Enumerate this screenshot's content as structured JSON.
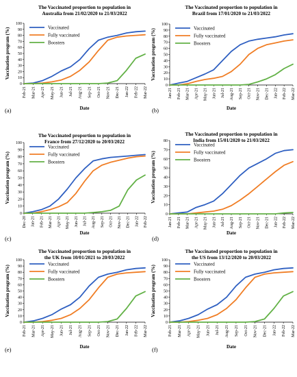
{
  "chart_data": [
    {
      "type": "line",
      "title": [
        "The Vaccinated proportion to population in",
        "Australia from 21/02/2020 to 21/03/2022"
      ],
      "xlabel": "Date",
      "ylabel": "Vaccination program (%)",
      "ylim": [
        0,
        100
      ],
      "y_ticks": [
        0,
        10,
        20,
        30,
        40,
        50,
        60,
        70,
        80,
        90,
        100
      ],
      "categories": [
        "Feb-21",
        "Mar-21",
        "Apr-21",
        "May-21",
        "Jun-21",
        "Jul-21",
        "Aug-21",
        "Sep-21",
        "Oct-21",
        "Nov-21",
        "Dec-21",
        "Jan-22",
        "Feb-22",
        "Mar-22"
      ],
      "legend": "top-left",
      "panel_label": "(a)",
      "series": [
        {
          "name": "Vaccinated",
          "color": "#2e5fc1",
          "values": [
            0,
            1,
            5,
            12,
            21,
            28,
            40,
            58,
            72,
            77,
            80,
            84,
            86,
            87
          ]
        },
        {
          "name": "Fully vaccinated",
          "color": "#f07d24",
          "values": [
            0,
            0,
            1,
            3,
            6,
            12,
            22,
            36,
            55,
            72,
            77,
            79,
            80,
            81
          ]
        },
        {
          "name": "Boosters",
          "color": "#62b146",
          "values": [
            0,
            0,
            0,
            0,
            0,
            0,
            0,
            0,
            0,
            1,
            5,
            22,
            42,
            49
          ]
        }
      ]
    },
    {
      "type": "line",
      "title": [
        "The Vaccinated proportion to population in",
        "Brazil from 17/01/2020 to 21/03/2022"
      ],
      "xlabel": "Date",
      "ylabel": "Vaccination program (%)",
      "ylim": [
        0,
        100
      ],
      "y_ticks": [
        0,
        10,
        20,
        30,
        40,
        50,
        60,
        70,
        80,
        90,
        100
      ],
      "categories": [
        "Jan-21",
        "Feb-21",
        "Mar-21",
        "Apr-21",
        "May-21",
        "Jun-21",
        "Jul-21",
        "Aug-21",
        "Sep-21",
        "Oct-21",
        "Nov-21",
        "Dec-21",
        "Jan-22",
        "Feb-22",
        "Mar-22"
      ],
      "legend": "top-left",
      "panel_label": "(b)",
      "series": [
        {
          "name": "Vaccinated",
          "color": "#2e5fc1",
          "values": [
            0,
            3,
            6,
            12,
            18,
            25,
            40,
            55,
            66,
            72,
            75,
            77,
            79,
            82,
            84
          ]
        },
        {
          "name": "Fully vaccinated",
          "color": "#f07d24",
          "values": [
            0,
            0,
            2,
            6,
            9,
            11,
            14,
            22,
            34,
            50,
            60,
            66,
            69,
            72,
            74
          ]
        },
        {
          "name": "Boosters",
          "color": "#62b146",
          "values": [
            0,
            0,
            0,
            0,
            0,
            0,
            0,
            0,
            0,
            1,
            5,
            10,
            17,
            27,
            34
          ]
        }
      ]
    },
    {
      "type": "line",
      "title": [
        "The Vaccinated proportion to population in",
        "France from 27/12/2020 to 20/03/2022"
      ],
      "xlabel": "Date",
      "ylabel": "Vaccination program (%)",
      "ylim": [
        0,
        100
      ],
      "y_ticks": [
        0,
        10,
        20,
        30,
        40,
        50,
        60,
        70,
        80,
        90,
        100
      ],
      "categories": [
        "Dec-20",
        "Jan-21",
        "Feb-21",
        "Mar-21",
        "Apr-21",
        "May-21",
        "Jun-21",
        "Jul-21",
        "Aug-21",
        "Sep-21",
        "Oct-21",
        "Nov-21",
        "Dec-21",
        "Jan-22",
        "Feb-22"
      ],
      "legend": "top-left",
      "panel_label": "(c)",
      "series": [
        {
          "name": "Vaccinated",
          "color": "#2e5fc1",
          "values": [
            0,
            2,
            5,
            10,
            20,
            34,
            50,
            63,
            74,
            77,
            79,
            80,
            81,
            82,
            83
          ]
        },
        {
          "name": "Fully vaccinated",
          "color": "#f07d24",
          "values": [
            0,
            0,
            2,
            5,
            9,
            15,
            28,
            45,
            60,
            68,
            72,
            75,
            78,
            80,
            81
          ]
        },
        {
          "name": "Boosters",
          "color": "#62b146",
          "values": [
            0,
            0,
            0,
            0,
            0,
            0,
            0,
            0,
            1,
            2,
            4,
            10,
            33,
            47,
            54
          ]
        }
      ]
    },
    {
      "type": "line",
      "title": [
        "The Vaccinated proportion to population in",
        "India from 15/01/2020 to 21/03/2022"
      ],
      "xlabel": "Date",
      "ylabel": "Vaccination program (%)",
      "ylim": [
        0,
        80
      ],
      "y_ticks": [
        0,
        10,
        20,
        30,
        40,
        50,
        60,
        70,
        80
      ],
      "categories": [
        "Jan-21",
        "Feb-21",
        "Mar-21",
        "Apr-21",
        "May-21",
        "Jun-21",
        "Jul-21",
        "Aug-21",
        "Sep-21",
        "Oct-21",
        "Nov-21",
        "Dec-21",
        "Jan-22",
        "Feb-22",
        "Mar-22"
      ],
      "legend": "top-left",
      "panel_label": "(d)",
      "series": [
        {
          "name": "Vaccinated",
          "color": "#2e5fc1",
          "values": [
            0,
            1,
            2,
            7,
            10,
            14,
            22,
            32,
            42,
            50,
            55,
            60,
            66,
            69,
            70
          ]
        },
        {
          "name": "Fully vaccinated",
          "color": "#f07d24",
          "values": [
            0,
            0,
            0,
            1,
            2,
            3,
            5,
            9,
            15,
            22,
            30,
            38,
            46,
            53,
            57
          ]
        },
        {
          "name": "Boosters",
          "color": "#62b146",
          "values": [
            0,
            0,
            0,
            0,
            0,
            0,
            0,
            0,
            0,
            0,
            0,
            0,
            0,
            1,
            1.5
          ]
        }
      ]
    },
    {
      "type": "line",
      "title": [
        "The Vaccinated proportion to population in",
        "the UK from 10/01/2021 to 20/03/2022"
      ],
      "xlabel": "Date",
      "ylabel": "Vaccination program (%)",
      "ylim": [
        0,
        100
      ],
      "y_ticks": [
        0,
        10,
        20,
        30,
        40,
        50,
        60,
        70,
        80,
        90,
        100
      ],
      "categories": [
        "Feb-21",
        "Mar-21",
        "Apr-21",
        "May-21",
        "Jun-21",
        "Jul-21",
        "Aug-21",
        "Sep-21",
        "Oct-21",
        "Nov-21",
        "Dec-21",
        "Jan-22",
        "Feb-22",
        "Mar-22"
      ],
      "legend": "top-left",
      "panel_label": "(e)",
      "series": [
        {
          "name": "Vaccinated",
          "color": "#2e5fc1",
          "values": [
            0,
            2,
            6,
            12,
            21,
            28,
            40,
            58,
            72,
            77,
            80,
            84,
            86,
            87
          ]
        },
        {
          "name": "Fully vaccinated",
          "color": "#f07d24",
          "values": [
            0,
            0,
            1,
            3,
            6,
            12,
            22,
            36,
            55,
            72,
            77,
            79,
            80,
            81
          ]
        },
        {
          "name": "Boosters",
          "color": "#62b146",
          "values": [
            0,
            0,
            0,
            0,
            0,
            0,
            0,
            0,
            0,
            1,
            5,
            22,
            42,
            49
          ]
        }
      ]
    },
    {
      "type": "line",
      "title": [
        "The Vaccinated proportion to population in",
        "the US from 13/12/2020 to 20/03/2022"
      ],
      "xlabel": "Date",
      "ylabel": "Vaccination program (%)",
      "ylim": [
        0,
        100
      ],
      "y_ticks": [
        0,
        10,
        20,
        30,
        40,
        50,
        60,
        70,
        80,
        90,
        100
      ],
      "categories": [
        "Feb-21",
        "Mar-21",
        "Apr-21",
        "May-21",
        "Jun-21",
        "Jul-21",
        "Aug-21",
        "Sep-21",
        "Oct-21",
        "Nov-21",
        "Dec-21",
        "Jan-22",
        "Feb-22",
        "Mar-22"
      ],
      "legend": "top-left",
      "panel_label": "(f)",
      "series": [
        {
          "name": "Vaccinated",
          "color": "#2e5fc1",
          "values": [
            0,
            2,
            6,
            12,
            21,
            28,
            40,
            58,
            72,
            77,
            80,
            84,
            86,
            87
          ]
        },
        {
          "name": "Fully vaccinated",
          "color": "#f07d24",
          "values": [
            0,
            0,
            1,
            3,
            6,
            12,
            22,
            36,
            55,
            72,
            77,
            79,
            80,
            81
          ]
        },
        {
          "name": "Boosters",
          "color": "#62b146",
          "values": [
            0,
            0,
            0,
            0,
            0,
            0,
            0,
            0,
            0,
            1,
            5,
            22,
            42,
            49
          ]
        }
      ]
    }
  ]
}
